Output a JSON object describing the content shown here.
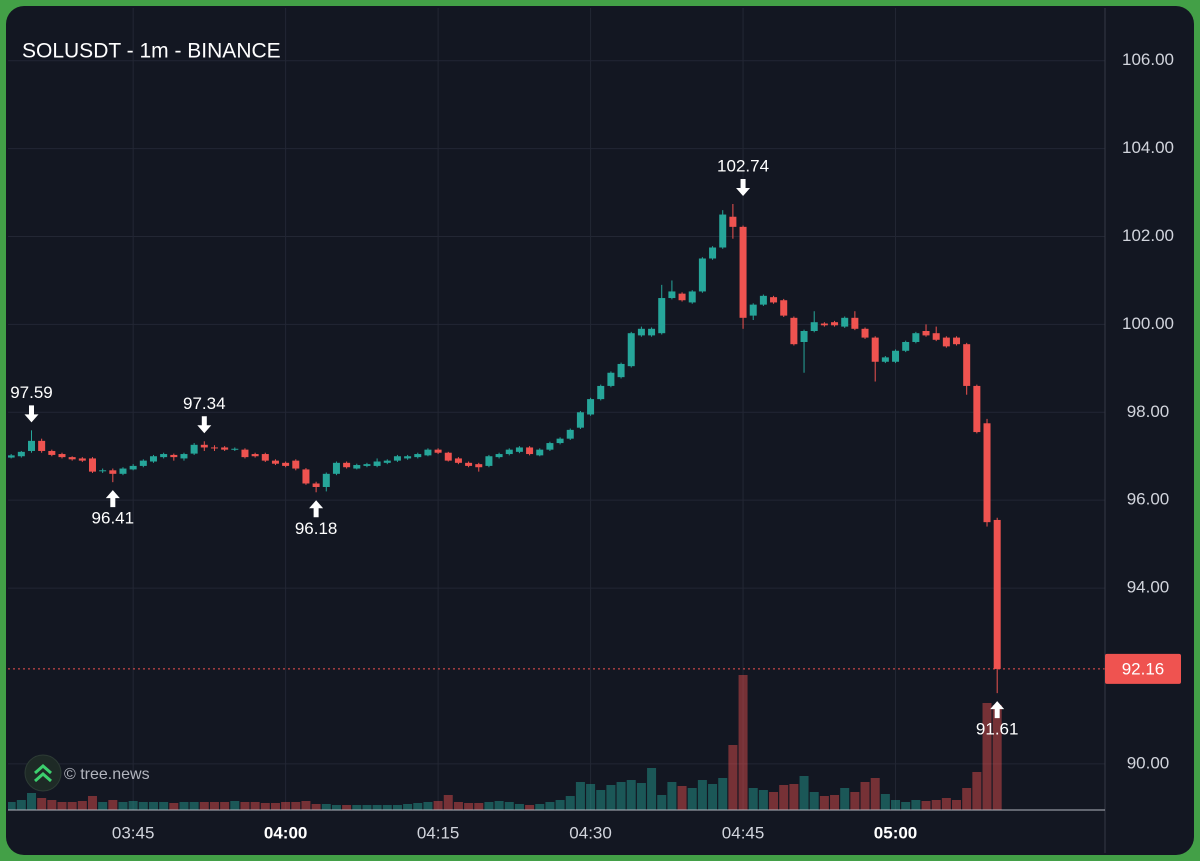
{
  "chart_data": {
    "type": "candlestick",
    "title": "SOLUSDT - 1m - BINANCE",
    "watermark": "© tree.news",
    "up_color": "#26a69a",
    "down_color": "#ef5350",
    "grid": true,
    "x": [
      "03:33",
      "03:34",
      "03:35",
      "03:36",
      "03:37",
      "03:38",
      "03:39",
      "03:40",
      "03:41",
      "03:42",
      "03:43",
      "03:44",
      "03:45",
      "03:46",
      "03:47",
      "03:48",
      "03:49",
      "03:50",
      "03:51",
      "03:52",
      "03:53",
      "03:54",
      "03:55",
      "03:56",
      "03:57",
      "03:58",
      "03:59",
      "04:00",
      "04:01",
      "04:02",
      "04:03",
      "04:04",
      "04:05",
      "04:06",
      "04:07",
      "04:08",
      "04:09",
      "04:10",
      "04:11",
      "04:12",
      "04:13",
      "04:14",
      "04:15",
      "04:16",
      "04:17",
      "04:18",
      "04:19",
      "04:20",
      "04:21",
      "04:22",
      "04:23",
      "04:24",
      "04:25",
      "04:26",
      "04:27",
      "04:28",
      "04:29",
      "04:30",
      "04:31",
      "04:32",
      "04:33",
      "04:34",
      "04:35",
      "04:36",
      "04:37",
      "04:38",
      "04:39",
      "04:40",
      "04:41",
      "04:42",
      "04:43",
      "04:44",
      "04:45",
      "04:46",
      "04:47",
      "04:48",
      "04:49",
      "04:50",
      "04:51",
      "04:52",
      "04:53",
      "04:54",
      "04:55",
      "04:56",
      "04:57",
      "04:58",
      "04:59",
      "05:00",
      "05:01",
      "05:02",
      "05:03",
      "05:04",
      "05:05",
      "05:06",
      "05:07",
      "05:08",
      "05:09",
      "05:10"
    ],
    "ohlc": [
      [
        96.97,
        97.05,
        96.95,
        97.02
      ],
      [
        97.0,
        97.12,
        96.97,
        97.1
      ],
      [
        97.12,
        97.59,
        97.08,
        97.35
      ],
      [
        97.35,
        97.4,
        97.08,
        97.12
      ],
      [
        97.12,
        97.15,
        97.0,
        97.03
      ],
      [
        97.05,
        97.08,
        96.95,
        96.98
      ],
      [
        96.98,
        97.0,
        96.9,
        96.93
      ],
      [
        96.95,
        96.98,
        96.87,
        96.9
      ],
      [
        96.95,
        96.98,
        96.62,
        96.65
      ],
      [
        96.66,
        96.72,
        96.62,
        96.68
      ],
      [
        96.68,
        96.72,
        96.41,
        96.6
      ],
      [
        96.6,
        96.75,
        96.57,
        96.72
      ],
      [
        96.7,
        96.82,
        96.68,
        96.78
      ],
      [
        96.78,
        96.93,
        96.75,
        96.9
      ],
      [
        96.88,
        97.03,
        96.85,
        97.0
      ],
      [
        96.98,
        97.08,
        96.95,
        97.05
      ],
      [
        97.03,
        97.06,
        96.9,
        96.98
      ],
      [
        96.95,
        97.08,
        96.9,
        97.05
      ],
      [
        97.06,
        97.3,
        97.03,
        97.26
      ],
      [
        97.26,
        97.34,
        97.12,
        97.2
      ],
      [
        97.2,
        97.25,
        97.12,
        97.18
      ],
      [
        97.2,
        97.23,
        97.12,
        97.15
      ],
      [
        97.16,
        97.2,
        97.12,
        97.17
      ],
      [
        97.15,
        97.18,
        96.95,
        96.98
      ],
      [
        97.05,
        97.08,
        96.97,
        97.0
      ],
      [
        97.05,
        97.08,
        96.87,
        96.9
      ],
      [
        96.9,
        96.93,
        96.8,
        96.83
      ],
      [
        96.85,
        96.88,
        96.75,
        96.78
      ],
      [
        96.9,
        96.93,
        96.68,
        96.72
      ],
      [
        96.7,
        96.73,
        96.35,
        96.38
      ],
      [
        96.38,
        96.42,
        96.18,
        96.3
      ],
      [
        96.3,
        96.63,
        96.2,
        96.6
      ],
      [
        96.6,
        96.88,
        96.57,
        96.85
      ],
      [
        96.85,
        96.88,
        96.72,
        96.75
      ],
      [
        96.72,
        96.83,
        96.7,
        96.8
      ],
      [
        96.78,
        96.85,
        96.75,
        96.82
      ],
      [
        96.78,
        96.95,
        96.75,
        96.88
      ],
      [
        96.85,
        96.93,
        96.82,
        96.9
      ],
      [
        96.9,
        97.03,
        96.87,
        97.0
      ],
      [
        96.95,
        97.03,
        96.92,
        97.0
      ],
      [
        96.98,
        97.08,
        96.95,
        97.05
      ],
      [
        97.02,
        97.18,
        97.0,
        97.15
      ],
      [
        97.15,
        97.18,
        97.05,
        97.08
      ],
      [
        97.08,
        97.1,
        96.88,
        96.9
      ],
      [
        96.95,
        96.98,
        96.82,
        96.85
      ],
      [
        96.85,
        96.88,
        96.75,
        96.78
      ],
      [
        96.82,
        96.85,
        96.65,
        96.75
      ],
      [
        96.78,
        97.03,
        96.75,
        97.0
      ],
      [
        96.98,
        97.08,
        96.95,
        97.05
      ],
      [
        97.05,
        97.18,
        97.02,
        97.15
      ],
      [
        97.1,
        97.23,
        97.07,
        97.2
      ],
      [
        97.2,
        97.23,
        97.02,
        97.05
      ],
      [
        97.02,
        97.18,
        97.0,
        97.15
      ],
      [
        97.15,
        97.33,
        97.12,
        97.3
      ],
      [
        97.3,
        97.43,
        97.27,
        97.4
      ],
      [
        97.4,
        97.63,
        97.37,
        97.6
      ],
      [
        97.65,
        98.03,
        97.62,
        98.0
      ],
      [
        97.95,
        98.33,
        97.92,
        98.3
      ],
      [
        98.3,
        98.63,
        98.27,
        98.6
      ],
      [
        98.6,
        98.93,
        98.57,
        98.9
      ],
      [
        98.8,
        99.13,
        98.77,
        99.1
      ],
      [
        99.05,
        99.83,
        99.02,
        99.8
      ],
      [
        99.75,
        99.95,
        99.72,
        99.9
      ],
      [
        99.75,
        99.93,
        99.72,
        99.9
      ],
      [
        99.8,
        100.9,
        99.77,
        100.6
      ],
      [
        100.6,
        101.0,
        100.57,
        100.75
      ],
      [
        100.7,
        100.73,
        100.52,
        100.55
      ],
      [
        100.5,
        100.78,
        100.47,
        100.75
      ],
      [
        100.75,
        101.53,
        100.72,
        101.5
      ],
      [
        101.5,
        101.78,
        101.47,
        101.75
      ],
      [
        101.75,
        102.6,
        101.72,
        102.5
      ],
      [
        102.45,
        102.74,
        101.95,
        102.22
      ],
      [
        102.22,
        102.25,
        99.9,
        100.15
      ],
      [
        100.2,
        100.48,
        100.1,
        100.45
      ],
      [
        100.45,
        100.68,
        100.42,
        100.65
      ],
      [
        100.62,
        100.65,
        100.47,
        100.5
      ],
      [
        100.55,
        100.58,
        100.17,
        100.2
      ],
      [
        100.15,
        100.18,
        99.52,
        99.55
      ],
      [
        99.6,
        99.88,
        98.9,
        99.85
      ],
      [
        99.85,
        100.3,
        99.82,
        100.05
      ],
      [
        100.02,
        100.05,
        99.95,
        99.98
      ],
      [
        100.05,
        100.08,
        99.95,
        99.98
      ],
      [
        99.95,
        100.18,
        99.92,
        100.15
      ],
      [
        100.15,
        100.3,
        99.87,
        99.9
      ],
      [
        99.9,
        99.93,
        99.67,
        99.7
      ],
      [
        99.7,
        99.73,
        98.7,
        99.15
      ],
      [
        99.15,
        99.28,
        99.12,
        99.25
      ],
      [
        99.15,
        99.43,
        99.12,
        99.4
      ],
      [
        99.4,
        99.63,
        99.37,
        99.6
      ],
      [
        99.6,
        99.83,
        99.57,
        99.8
      ],
      [
        99.85,
        100.0,
        99.72,
        99.75
      ],
      [
        99.8,
        99.95,
        99.62,
        99.65
      ],
      [
        99.7,
        99.73,
        99.47,
        99.5
      ],
      [
        99.7,
        99.73,
        99.52,
        99.55
      ],
      [
        99.55,
        99.58,
        98.4,
        98.6
      ],
      [
        98.6,
        98.63,
        97.52,
        97.55
      ],
      [
        97.75,
        97.85,
        95.4,
        95.5
      ],
      [
        95.55,
        95.6,
        91.61,
        92.16
      ]
    ],
    "volume": [
      8,
      10,
      17,
      12,
      10,
      8,
      8,
      9,
      14,
      8,
      10,
      8,
      9,
      8,
      8,
      8,
      7,
      8,
      8,
      8,
      8,
      8,
      9,
      8,
      8,
      7,
      7,
      8,
      8,
      9,
      6,
      6,
      5,
      5,
      5,
      5,
      5,
      5,
      5,
      6,
      7,
      8,
      9,
      15,
      8,
      7,
      7,
      8,
      9,
      8,
      6,
      5,
      6,
      8,
      10,
      14,
      28,
      26,
      20,
      25,
      28,
      30,
      27,
      42,
      15,
      28,
      24,
      22,
      30,
      26,
      32,
      65,
      135,
      22,
      20,
      18,
      25,
      26,
      34,
      18,
      14,
      15,
      22,
      18,
      28,
      32,
      16,
      10,
      8,
      10,
      9,
      10,
      12,
      10,
      22,
      38,
      107,
      105
    ],
    "volume_ylim": [
      0,
      140
    ],
    "xlim": [
      "03:32",
      "05:21"
    ],
    "xticks": [
      "03:45",
      "04:00",
      "04:15",
      "04:30",
      "04:45",
      "05:00"
    ],
    "ylim": [
      88.95,
      107.2
    ],
    "yticks": [
      {
        "value": 90,
        "label": "90.00"
      },
      {
        "value": 94,
        "label": "94.00"
      },
      {
        "value": 96,
        "label": "96.00"
      },
      {
        "value": 98,
        "label": "98.00"
      },
      {
        "value": 100,
        "label": "100.00"
      },
      {
        "value": 102,
        "label": "102.00"
      },
      {
        "value": 104,
        "label": "104.00"
      },
      {
        "value": 106,
        "label": "106.00"
      }
    ],
    "last_price": 92.16,
    "annotations": [
      {
        "x": "03:35",
        "value": 97.59,
        "dir": "down"
      },
      {
        "x": "03:43",
        "value": 96.41,
        "dir": "up"
      },
      {
        "x": "03:52",
        "value": 97.34,
        "dir": "down"
      },
      {
        "x": "04:03",
        "value": 96.18,
        "dir": "up"
      },
      {
        "x": "04:45",
        "value": 102.74,
        "dir": "down"
      },
      {
        "x": "05:10",
        "value": 91.61,
        "dir": "up"
      }
    ]
  }
}
